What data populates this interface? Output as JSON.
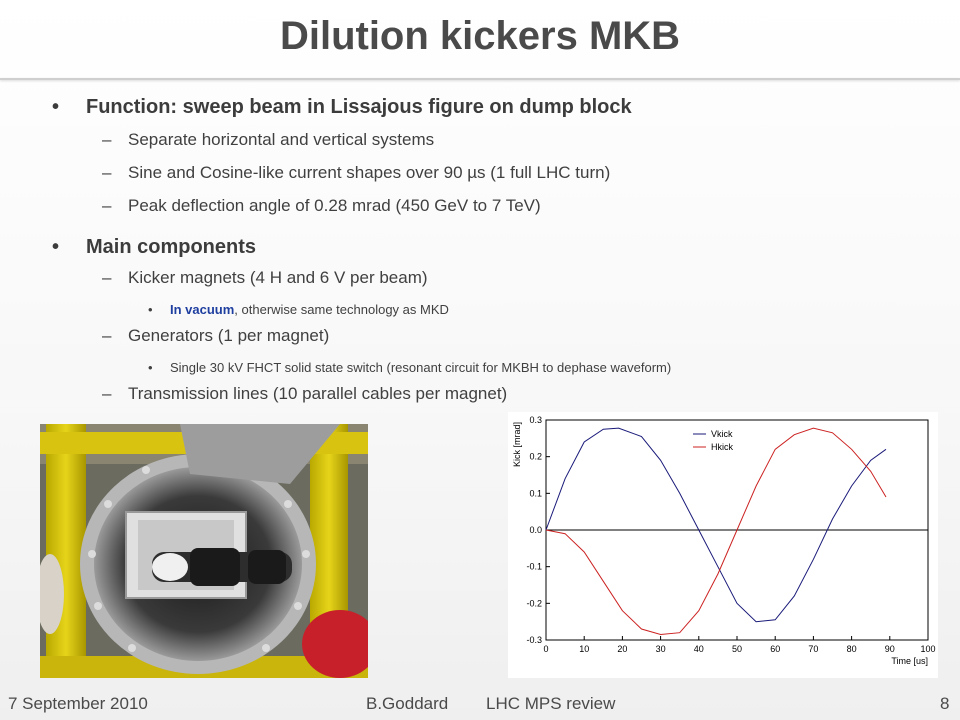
{
  "slide": {
    "title": "Dilution kickers MKB",
    "bullets": {
      "function": "Function: sweep beam in Lissajous figure on dump block",
      "function_sub": [
        "Separate horizontal and vertical systems",
        "Sine and Cosine-like current shapes over 90 µs (1 full LHC turn)",
        "Peak deflection angle of 0.28 mrad (450 GeV to 7 TeV)"
      ],
      "main": "Main components",
      "kicker": "Kicker magnets (4 H and 6 V per beam)",
      "kicker_sub_bold": "In vacuum",
      "kicker_sub_rest": ", otherwise same technology as MKD",
      "generators": "Generators (1 per magnet)",
      "generators_sub": "Single 30 kV FHCT solid state switch (resonant circuit for MKBH to dephase waveform)",
      "transmission": "Transmission lines (10 parallel cables per magnet)"
    },
    "bullet_char": "•",
    "dash_char": "–"
  },
  "footer": {
    "date": "7 September 2010",
    "author": "B.Goddard",
    "event": "LHC MPS review",
    "page": "8"
  },
  "chart_data": {
    "type": "line",
    "xlabel": "Time [us]",
    "ylabel": "Kick [mrad]",
    "xlim": [
      0,
      100
    ],
    "ylim": [
      -0.3,
      0.3
    ],
    "xticks": [
      "0",
      "10",
      "20",
      "30",
      "40",
      "50",
      "60",
      "70",
      "80",
      "90",
      "100"
    ],
    "yticks": [
      "0.3",
      "0.2",
      "0.1",
      "0.0",
      "-0.1",
      "-0.2",
      "-0.3"
    ],
    "legend_position": "top-right",
    "series": [
      {
        "name": "Vkick",
        "color": "#1a1a7a",
        "x": [
          0,
          5,
          10,
          15,
          19,
          25,
          30,
          35,
          40,
          45,
          50,
          55,
          60,
          65,
          70,
          75,
          80,
          85,
          89
        ],
        "y": [
          0.0,
          0.14,
          0.24,
          0.275,
          0.278,
          0.255,
          0.19,
          0.1,
          0.0,
          -0.1,
          -0.2,
          -0.25,
          -0.245,
          -0.18,
          -0.08,
          0.03,
          0.12,
          0.19,
          0.22
        ]
      },
      {
        "name": "Hkick",
        "color": "#cc2222",
        "x": [
          0,
          5,
          10,
          15,
          20,
          25,
          30,
          35,
          40,
          45,
          50,
          55,
          60,
          65,
          70,
          75,
          80,
          85,
          89
        ],
        "y": [
          0.0,
          -0.01,
          -0.06,
          -0.14,
          -0.22,
          -0.27,
          -0.285,
          -0.28,
          -0.22,
          -0.12,
          0.0,
          0.12,
          0.22,
          0.26,
          0.278,
          0.265,
          0.22,
          0.16,
          0.09
        ]
      }
    ]
  }
}
